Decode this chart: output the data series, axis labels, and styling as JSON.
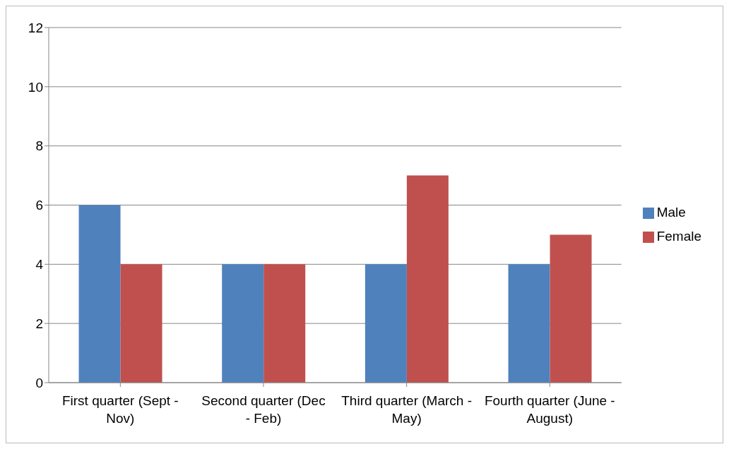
{
  "chart_data": {
    "type": "bar",
    "categories": [
      "First quarter (Sept - Nov)",
      "Second quarter (Dec - Feb)",
      "Third quarter (March - May)",
      "Fourth quarter (June - August)"
    ],
    "series": [
      {
        "name": "Male",
        "color": "#4f81bd",
        "values": [
          6,
          4,
          4,
          4
        ]
      },
      {
        "name": "Female",
        "color": "#c0504d",
        "values": [
          4,
          4,
          7,
          5
        ]
      }
    ],
    "ylim": [
      0,
      12
    ],
    "yticks": [
      0,
      2,
      4,
      6,
      8,
      10,
      12
    ],
    "grid": "y",
    "legend": "right"
  }
}
